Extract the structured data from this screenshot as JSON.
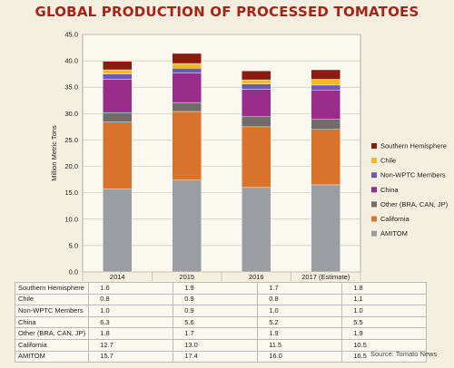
{
  "chart_data": {
    "type": "bar",
    "stacked": true,
    "title": "GLOBAL PRODUCTION OF PROCESSED TOMATOES",
    "ylabel": "Million Metric Tons",
    "ylim": [
      0,
      45
    ],
    "ytick_step": 5,
    "yticks": [
      "0.0",
      "5.0",
      "10.0",
      "15.0",
      "20.0",
      "25.0",
      "30.0",
      "35.0",
      "40.0",
      "45.0"
    ],
    "grid": true,
    "legend_position": "right",
    "categories": [
      "2014",
      "2015",
      "2016",
      "2017 (Estimate)"
    ],
    "series": [
      {
        "name": "AMITOM",
        "values": [
          15.7,
          17.4,
          16.0,
          16.5
        ],
        "color": "#9a9ea2"
      },
      {
        "name": "California",
        "values": [
          12.7,
          13.0,
          11.5,
          10.5
        ],
        "color": "#d9722b"
      },
      {
        "name": "Other (BRA, CAN, JP)",
        "values": [
          1.8,
          1.7,
          1.9,
          1.9
        ],
        "color": "#6f6c69"
      },
      {
        "name": "China",
        "values": [
          6.3,
          5.6,
          5.2,
          5.5
        ],
        "color": "#9a2c8c"
      },
      {
        "name": "Non-WPTC Members",
        "values": [
          1.0,
          0.9,
          1.0,
          1.0
        ],
        "color": "#6a5bb1"
      },
      {
        "name": "Chile",
        "values": [
          0.8,
          0.9,
          0.8,
          1.1
        ],
        "color": "#f2b927"
      },
      {
        "name": "Southern Hemisphere",
        "values": [
          1.6,
          1.9,
          1.7,
          1.8
        ],
        "color": "#8b1a10"
      }
    ],
    "table_rows": [
      {
        "label": "Southern Hemisphere",
        "values": [
          "1.6",
          "1.9",
          "1.7",
          "1.8"
        ]
      },
      {
        "label": "Chile",
        "values": [
          "0.8",
          "0.9",
          "0.8",
          "1.1"
        ]
      },
      {
        "label": "Non-WPTC Members",
        "values": [
          "1.0",
          "0.9",
          "1.0",
          "1.0"
        ]
      },
      {
        "label": "China",
        "values": [
          "6.3",
          "5.6",
          "5.2",
          "5.5"
        ]
      },
      {
        "label": "Other (BRA, CAN, JP)",
        "values": [
          "1.8",
          "1.7",
          "1.9",
          "1.9"
        ]
      },
      {
        "label": "California",
        "values": [
          "12.7",
          "13.0",
          "11.5",
          "10.5"
        ]
      },
      {
        "label": "AMITOM",
        "values": [
          "15.7",
          "17.4",
          "16.0",
          "16.5"
        ]
      }
    ]
  },
  "source": "Source: Tomato News"
}
